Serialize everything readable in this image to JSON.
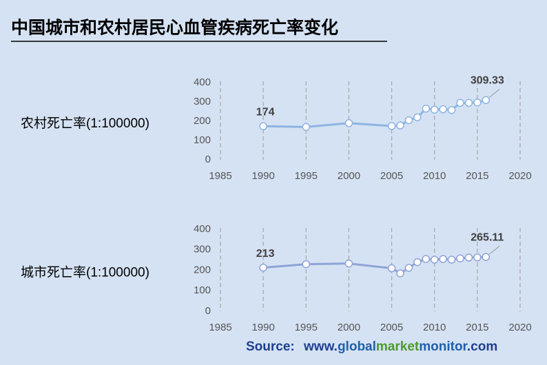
{
  "title": "中国城市和农村居民心血管疾病死亡率变化",
  "source": {
    "prefix": "Source:",
    "www": "www.",
    "global": "global",
    "market": "market",
    "monitor": "monitor",
    "com": ".com"
  },
  "chart_data": [
    {
      "type": "line",
      "ylabel": "农村死亡率(1:100000)",
      "color": "#8db4e2",
      "x": [
        1990,
        1995,
        2000,
        2005,
        2006,
        2007,
        2008,
        2009,
        2010,
        2011,
        2012,
        2013,
        2014,
        2015,
        2016
      ],
      "values": [
        174,
        170,
        190,
        175,
        178,
        205,
        220,
        265,
        260,
        262,
        258,
        295,
        295,
        297,
        309.33
      ],
      "value_labels": [
        "174",
        null,
        null,
        null,
        null,
        null,
        null,
        null,
        null,
        null,
        null,
        null,
        null,
        null,
        "309.33"
      ],
      "xlim": [
        1985,
        2020
      ],
      "xticks": [
        1985,
        1990,
        1995,
        2000,
        2005,
        2010,
        2015,
        2020
      ],
      "ylim": [
        0,
        400
      ],
      "yticks": [
        0,
        100,
        200,
        300,
        400
      ],
      "grid": true
    },
    {
      "type": "line",
      "ylabel": "城市死亡率(1:100000)",
      "color": "#8ea3d8",
      "x": [
        1990,
        1995,
        2000,
        2005,
        2006,
        2007,
        2008,
        2009,
        2010,
        2011,
        2012,
        2013,
        2014,
        2015,
        2016
      ],
      "values": [
        213,
        230,
        233,
        210,
        185,
        212,
        240,
        255,
        252,
        255,
        252,
        258,
        262,
        263,
        265.11
      ],
      "value_labels": [
        "213",
        null,
        null,
        null,
        null,
        null,
        null,
        null,
        null,
        null,
        null,
        null,
        null,
        null,
        "265.11"
      ],
      "xlim": [
        1985,
        2020
      ],
      "xticks": [
        1985,
        1990,
        1995,
        2000,
        2005,
        2010,
        2015,
        2020
      ],
      "ylim": [
        0,
        400
      ],
      "yticks": [
        0,
        100,
        200,
        300,
        400
      ],
      "grid": true
    }
  ]
}
